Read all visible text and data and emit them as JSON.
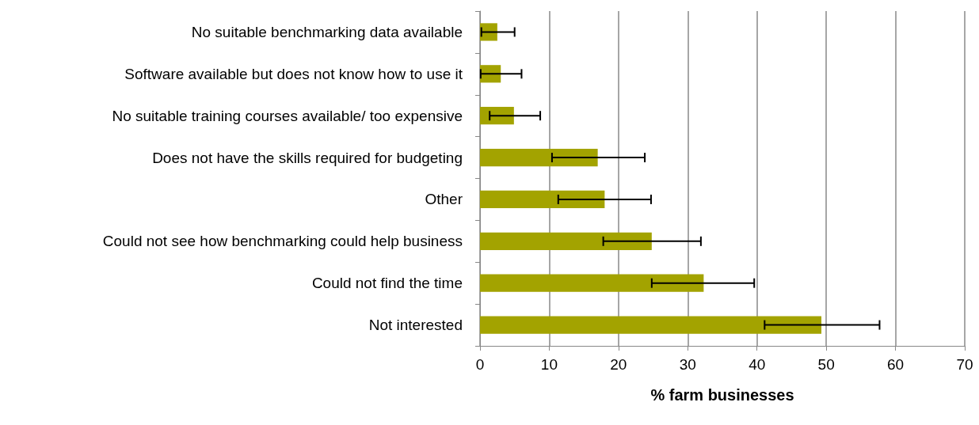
{
  "chart_data": {
    "type": "bar",
    "orientation": "horizontal",
    "xlabel": "% farm businesses",
    "categories": [
      "No suitable benchmarking data available",
      "Software available but does not know how to use it",
      "No suitable training courses available/ too expensive",
      "Does not have the skills required for budgeting",
      "Other",
      "Could not see how benchmarking could help business",
      "Could not find the time",
      "Not interested"
    ],
    "values": [
      2.5,
      3.0,
      4.9,
      17.0,
      18.0,
      24.8,
      32.3,
      49.3
    ],
    "errors": [
      [
        0.2,
        5.0
      ],
      [
        0.1,
        6.0
      ],
      [
        1.4,
        8.7
      ],
      [
        10.4,
        23.8
      ],
      [
        11.3,
        24.7
      ],
      [
        17.8,
        31.9
      ],
      [
        24.8,
        39.6
      ],
      [
        41.1,
        57.7
      ]
    ],
    "color": "#a3a300",
    "xlim": [
      0,
      70
    ],
    "xticks": [
      0,
      10,
      20,
      30,
      40,
      50,
      60,
      70
    ],
    "grid": "x"
  }
}
